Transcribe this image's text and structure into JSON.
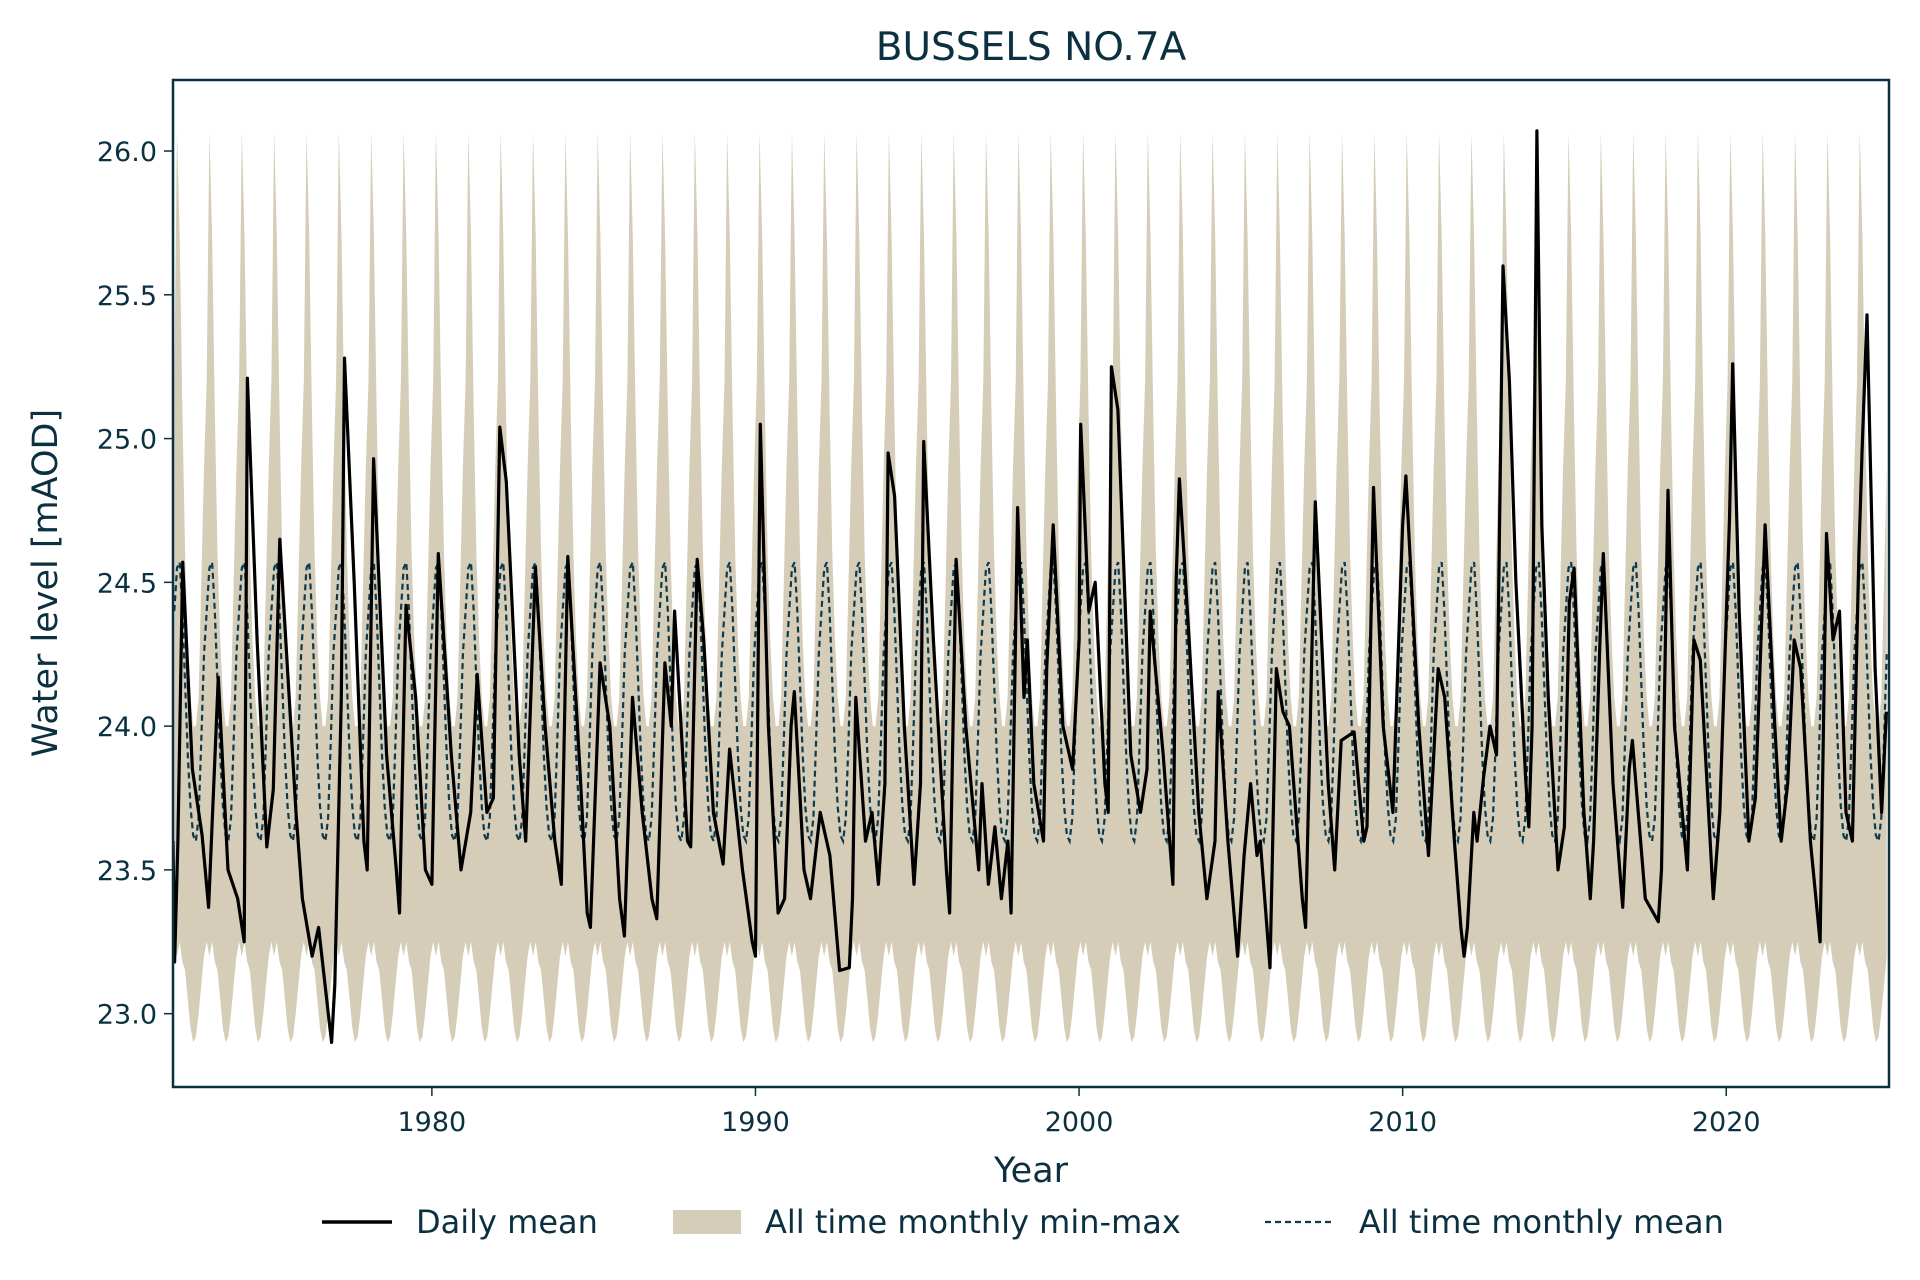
{
  "chart_data": {
    "type": "line",
    "title": "BUSSELS NO.7A",
    "xlabel": "Year",
    "ylabel": "Water level [mAOD]",
    "xlim": [
      1972.0,
      2025.03
    ],
    "ylim": [
      22.745,
      26.247
    ],
    "xticks": [
      1980,
      1990,
      2000,
      2010,
      2020
    ],
    "xtick_labels": [
      "1980",
      "1990",
      "2000",
      "2010",
      "2020"
    ],
    "yticks": [
      23.0,
      23.5,
      24.0,
      24.5,
      25.0,
      25.5,
      26.0
    ],
    "ytick_labels": [
      "23.0",
      "23.5",
      "24.0",
      "24.5",
      "25.0",
      "25.5",
      "26.0"
    ],
    "grid": false,
    "legend_position": "bottom-center",
    "colors": {
      "daily": "#000000",
      "band": "#d6cdb8",
      "mean": "#0d3a4d",
      "axes": "#0b3040"
    },
    "legend": [
      {
        "label": "Daily mean",
        "style": "solid-line"
      },
      {
        "label": "All time monthly min-max",
        "style": "fill"
      },
      {
        "label": "All time monthly mean",
        "style": "dashed-line"
      }
    ],
    "band_years": [
      1972,
      2024
    ],
    "monthly_max": [
      25.2,
      26.07,
      25.7,
      25.1,
      24.6,
      24.3,
      24.1,
      24.0,
      24.0,
      24.1,
      24.5,
      24.9
    ],
    "monthly_min": [
      23.25,
      23.2,
      23.25,
      23.18,
      23.15,
      23.05,
      22.95,
      22.9,
      22.92,
      23.0,
      23.1,
      23.2
    ],
    "monthly_mean": [
      24.4,
      24.55,
      24.57,
      24.4,
      24.15,
      23.9,
      23.72,
      23.62,
      23.6,
      23.68,
      23.95,
      24.25
    ],
    "daily_mean": [
      [
        1972.0,
        23.6
      ],
      [
        1972.05,
        23.18
      ],
      [
        1972.15,
        23.6
      ],
      [
        1972.3,
        24.57
      ],
      [
        1972.6,
        23.85
      ],
      [
        1972.9,
        23.62
      ],
      [
        1973.1,
        23.37
      ],
      [
        1973.4,
        24.17
      ],
      [
        1973.7,
        23.5
      ],
      [
        1974.0,
        23.4
      ],
      [
        1974.2,
        23.25
      ],
      [
        1974.3,
        25.21
      ],
      [
        1974.6,
        24.3
      ],
      [
        1974.9,
        23.58
      ],
      [
        1975.1,
        23.78
      ],
      [
        1975.3,
        24.65
      ],
      [
        1975.8,
        23.7
      ],
      [
        1976.0,
        23.4
      ],
      [
        1976.3,
        23.2
      ],
      [
        1976.5,
        23.3
      ],
      [
        1976.8,
        23.0
      ],
      [
        1976.9,
        22.9
      ],
      [
        1977.0,
        23.1
      ],
      [
        1977.2,
        24.1
      ],
      [
        1977.3,
        25.28
      ],
      [
        1977.6,
        24.5
      ],
      [
        1977.9,
        23.6
      ],
      [
        1978.0,
        23.5
      ],
      [
        1978.2,
        24.93
      ],
      [
        1978.6,
        23.9
      ],
      [
        1978.9,
        23.5
      ],
      [
        1979.0,
        23.35
      ],
      [
        1979.2,
        24.42
      ],
      [
        1979.5,
        24.1
      ],
      [
        1979.8,
        23.5
      ],
      [
        1980.0,
        23.45
      ],
      [
        1980.2,
        24.6
      ],
      [
        1980.6,
        23.9
      ],
      [
        1980.9,
        23.5
      ],
      [
        1981.2,
        23.7
      ],
      [
        1981.4,
        24.18
      ],
      [
        1981.7,
        23.7
      ],
      [
        1981.9,
        23.75
      ],
      [
        1982.1,
        25.04
      ],
      [
        1982.3,
        24.85
      ],
      [
        1982.7,
        23.9
      ],
      [
        1982.9,
        23.6
      ],
      [
        1983.2,
        24.55
      ],
      [
        1983.5,
        24.0
      ],
      [
        1983.8,
        23.6
      ],
      [
        1984.0,
        23.45
      ],
      [
        1984.2,
        24.59
      ],
      [
        1984.6,
        23.8
      ],
      [
        1984.8,
        23.35
      ],
      [
        1984.9,
        23.3
      ],
      [
        1985.2,
        24.22
      ],
      [
        1985.5,
        24.0
      ],
      [
        1985.8,
        23.4
      ],
      [
        1985.95,
        23.27
      ],
      [
        1986.2,
        24.1
      ],
      [
        1986.5,
        23.7
      ],
      [
        1986.8,
        23.4
      ],
      [
        1986.95,
        23.33
      ],
      [
        1987.2,
        24.22
      ],
      [
        1987.4,
        24.0
      ],
      [
        1987.5,
        24.4
      ],
      [
        1987.9,
        23.6
      ],
      [
        1988.0,
        23.58
      ],
      [
        1988.2,
        24.58
      ],
      [
        1988.4,
        24.3
      ],
      [
        1988.7,
        23.7
      ],
      [
        1989.0,
        23.52
      ],
      [
        1989.2,
        23.92
      ],
      [
        1989.6,
        23.5
      ],
      [
        1989.9,
        23.25
      ],
      [
        1990.0,
        23.2
      ],
      [
        1990.15,
        25.05
      ],
      [
        1990.4,
        24.0
      ],
      [
        1990.7,
        23.35
      ],
      [
        1990.9,
        23.4
      ],
      [
        1991.1,
        24.0
      ],
      [
        1991.2,
        24.12
      ],
      [
        1991.5,
        23.5
      ],
      [
        1991.7,
        23.4
      ],
      [
        1992.0,
        23.7
      ],
      [
        1992.3,
        23.55
      ],
      [
        1992.6,
        23.15
      ],
      [
        1992.9,
        23.16
      ],
      [
        1993.0,
        23.4
      ],
      [
        1993.1,
        24.1
      ],
      [
        1993.4,
        23.6
      ],
      [
        1993.6,
        23.7
      ],
      [
        1993.8,
        23.45
      ],
      [
        1994.0,
        23.8
      ],
      [
        1994.1,
        24.95
      ],
      [
        1994.3,
        24.8
      ],
      [
        1994.6,
        24.0
      ],
      [
        1994.9,
        23.45
      ],
      [
        1995.1,
        23.8
      ],
      [
        1995.2,
        24.99
      ],
      [
        1995.5,
        24.3
      ],
      [
        1995.9,
        23.5
      ],
      [
        1996.0,
        23.35
      ],
      [
        1996.2,
        24.58
      ],
      [
        1996.5,
        24.0
      ],
      [
        1996.9,
        23.5
      ],
      [
        1997.0,
        23.8
      ],
      [
        1997.2,
        23.45
      ],
      [
        1997.4,
        23.65
      ],
      [
        1997.6,
        23.4
      ],
      [
        1997.8,
        23.6
      ],
      [
        1997.9,
        23.35
      ],
      [
        1998.1,
        24.76
      ],
      [
        1998.3,
        24.1
      ],
      [
        1998.4,
        24.3
      ],
      [
        1998.6,
        23.8
      ],
      [
        1998.9,
        23.6
      ],
      [
        1999.0,
        24.2
      ],
      [
        1999.2,
        24.7
      ],
      [
        1999.5,
        24.0
      ],
      [
        1999.8,
        23.85
      ],
      [
        2000.0,
        24.3
      ],
      [
        2000.05,
        25.05
      ],
      [
        2000.3,
        24.4
      ],
      [
        2000.5,
        24.5
      ],
      [
        2000.8,
        23.8
      ],
      [
        2000.9,
        23.7
      ],
      [
        2001.0,
        25.25
      ],
      [
        2001.2,
        25.1
      ],
      [
        2001.6,
        23.9
      ],
      [
        2001.9,
        23.7
      ],
      [
        2002.1,
        23.85
      ],
      [
        2002.2,
        24.4
      ],
      [
        2002.6,
        23.9
      ],
      [
        2002.9,
        23.45
      ],
      [
        2003.0,
        24.5
      ],
      [
        2003.1,
        24.86
      ],
      [
        2003.4,
        24.3
      ],
      [
        2003.7,
        23.7
      ],
      [
        2003.95,
        23.4
      ],
      [
        2004.2,
        23.6
      ],
      [
        2004.3,
        24.12
      ],
      [
        2004.6,
        23.6
      ],
      [
        2004.9,
        23.2
      ],
      [
        2005.1,
        23.55
      ],
      [
        2005.3,
        23.8
      ],
      [
        2005.5,
        23.55
      ],
      [
        2005.6,
        23.6
      ],
      [
        2005.9,
        23.16
      ],
      [
        2006.1,
        24.2
      ],
      [
        2006.3,
        24.05
      ],
      [
        2006.5,
        24.0
      ],
      [
        2006.9,
        23.4
      ],
      [
        2007.0,
        23.3
      ],
      [
        2007.3,
        24.78
      ],
      [
        2007.7,
        23.8
      ],
      [
        2007.9,
        23.5
      ],
      [
        2008.1,
        23.95
      ],
      [
        2008.5,
        23.98
      ],
      [
        2008.8,
        23.6
      ],
      [
        2008.9,
        23.65
      ],
      [
        2009.1,
        24.83
      ],
      [
        2009.4,
        24.0
      ],
      [
        2009.7,
        23.7
      ],
      [
        2010.0,
        24.7
      ],
      [
        2010.1,
        24.87
      ],
      [
        2010.5,
        24.0
      ],
      [
        2010.8,
        23.55
      ],
      [
        2011.1,
        24.2
      ],
      [
        2011.3,
        24.1
      ],
      [
        2011.6,
        23.6
      ],
      [
        2011.8,
        23.3
      ],
      [
        2011.9,
        23.2
      ],
      [
        2012.0,
        23.3
      ],
      [
        2012.2,
        23.7
      ],
      [
        2012.3,
        23.6
      ],
      [
        2012.5,
        23.82
      ],
      [
        2012.7,
        24.0
      ],
      [
        2012.9,
        23.9
      ],
      [
        2013.1,
        25.6
      ],
      [
        2013.3,
        25.2
      ],
      [
        2013.5,
        24.5
      ],
      [
        2013.8,
        23.82
      ],
      [
        2013.9,
        23.65
      ],
      [
        2014.0,
        24.0
      ],
      [
        2014.15,
        26.07
      ],
      [
        2014.3,
        24.7
      ],
      [
        2014.5,
        24.1
      ],
      [
        2014.8,
        23.5
      ],
      [
        2015.0,
        23.65
      ],
      [
        2015.15,
        24.43
      ],
      [
        2015.3,
        24.55
      ],
      [
        2015.6,
        23.7
      ],
      [
        2015.8,
        23.4
      ],
      [
        2015.9,
        23.6
      ],
      [
        2016.1,
        24.3
      ],
      [
        2016.2,
        24.6
      ],
      [
        2016.5,
        23.8
      ],
      [
        2016.8,
        23.37
      ],
      [
        2017.0,
        23.85
      ],
      [
        2017.1,
        23.95
      ],
      [
        2017.5,
        23.4
      ],
      [
        2017.9,
        23.32
      ],
      [
        2018.0,
        23.5
      ],
      [
        2018.2,
        24.82
      ],
      [
        2018.4,
        24.0
      ],
      [
        2018.8,
        23.5
      ],
      [
        2019.0,
        24.3
      ],
      [
        2019.2,
        24.23
      ],
      [
        2019.6,
        23.4
      ],
      [
        2019.8,
        23.7
      ],
      [
        2020.1,
        24.72
      ],
      [
        2020.2,
        25.26
      ],
      [
        2020.4,
        24.4
      ],
      [
        2020.7,
        23.6
      ],
      [
        2020.9,
        23.75
      ],
      [
        2021.2,
        24.7
      ],
      [
        2021.5,
        24.0
      ],
      [
        2021.7,
        23.6
      ],
      [
        2021.9,
        23.8
      ],
      [
        2022.1,
        24.3
      ],
      [
        2022.3,
        24.2
      ],
      [
        2022.6,
        23.6
      ],
      [
        2022.9,
        23.25
      ],
      [
        2023.1,
        24.67
      ],
      [
        2023.3,
        24.3
      ],
      [
        2023.5,
        24.4
      ],
      [
        2023.7,
        23.7
      ],
      [
        2023.9,
        23.6
      ],
      [
        2024.1,
        24.6
      ],
      [
        2024.2,
        24.96
      ],
      [
        2024.35,
        25.43
      ],
      [
        2024.6,
        24.2
      ],
      [
        2024.8,
        23.7
      ],
      [
        2024.95,
        24.05
      ]
    ]
  }
}
